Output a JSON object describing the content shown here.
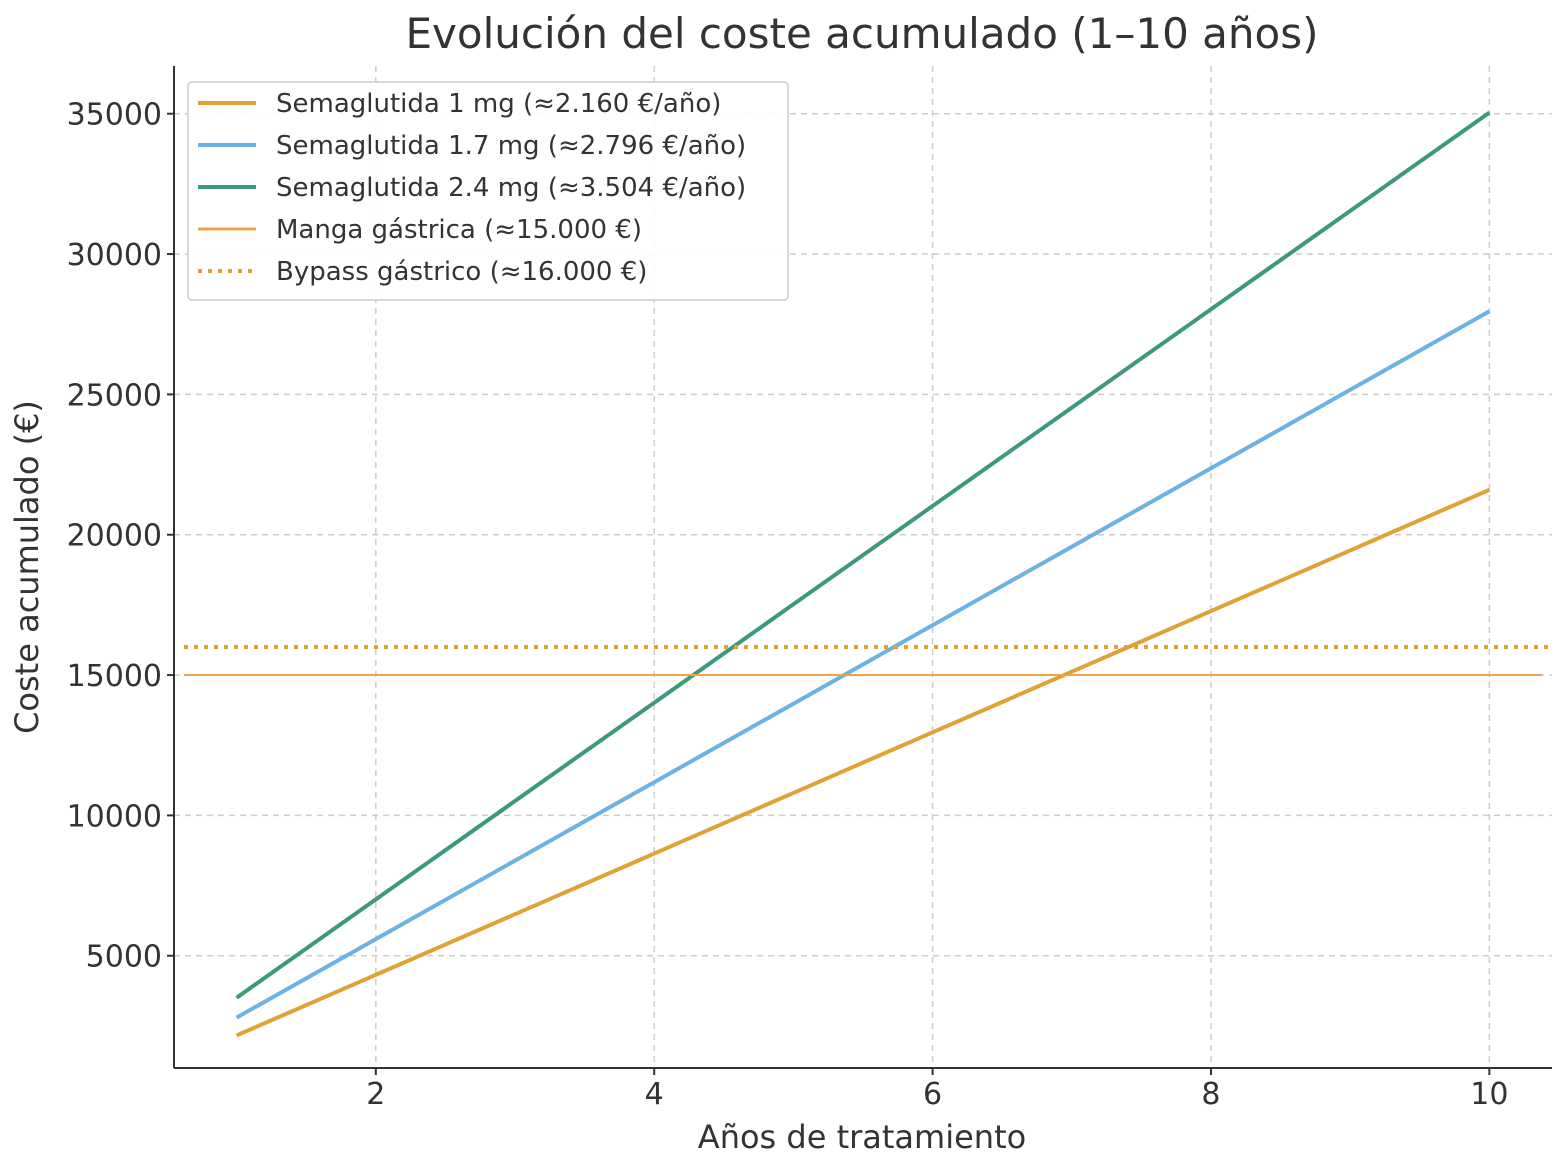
{
  "chart_data": {
    "type": "line",
    "title": "Evolución del coste acumulado (1–10 años)",
    "xlabel": "Años de tratamiento",
    "ylabel": "Coste acumulado (€)",
    "xlim": [
      0.55,
      10.45
    ],
    "ylim": [
      1000,
      36700
    ],
    "xticks": [
      2,
      4,
      6,
      8,
      10
    ],
    "yticks": [
      5000,
      10000,
      15000,
      20000,
      25000,
      30000,
      35000
    ],
    "grid": true,
    "legend_position": "top-left",
    "x": [
      1,
      2,
      3,
      4,
      5,
      6,
      7,
      8,
      9,
      10
    ],
    "series": [
      {
        "name": "Semaglutida 1 mg (≈2.160 €/año)",
        "color": "#e0a234",
        "style": "solid",
        "values": [
          2160,
          4320,
          6480,
          8640,
          10800,
          12960,
          15120,
          17280,
          19440,
          21600
        ]
      },
      {
        "name": "Semaglutida 1.7 mg (≈2.796 €/año)",
        "color": "#6cb2e4",
        "style": "solid",
        "values": [
          2796,
          5592,
          8388,
          11184,
          13980,
          16776,
          19572,
          22368,
          25164,
          27960
        ]
      },
      {
        "name": "Semaglutida 2.4 mg (≈3.504 €/año)",
        "color": "#3d9a74",
        "style": "solid",
        "values": [
          3504,
          7008,
          10512,
          14016,
          17520,
          21024,
          24528,
          28032,
          31536,
          35040
        ]
      },
      {
        "name": "Manga gástrica (≈15.000 €)",
        "color": "#f0a24a",
        "style": "hline",
        "value": 15000
      },
      {
        "name": "Bypass gástrico (≈16.000 €)",
        "color": "#e0a234",
        "style": "dotted",
        "value": 16000
      }
    ]
  }
}
